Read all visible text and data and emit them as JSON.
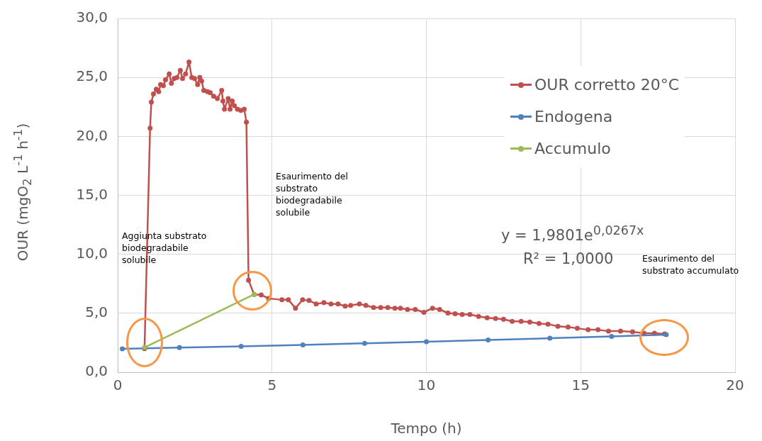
{
  "chart_data": {
    "type": "line",
    "xlabel": "Tempo (h)",
    "ylabel": "OUR (mgO$_{2}$ L$^{-1}$ h$^{-1}$)",
    "xlim": [
      0,
      20
    ],
    "xticks": [
      0,
      5,
      10,
      15,
      20
    ],
    "ylim": [
      0,
      30
    ],
    "yticks": [
      {
        "value": 0,
        "label": "0,0"
      },
      {
        "value": 5,
        "label": "5,0"
      },
      {
        "value": 10,
        "label": "10,0"
      },
      {
        "value": 15,
        "label": "15,0"
      },
      {
        "value": 20,
        "label": "20,0"
      },
      {
        "value": 25,
        "label": "25,0"
      },
      {
        "value": 30,
        "label": "30,0"
      }
    ],
    "grid": true,
    "legend": "top right",
    "marker": "circle",
    "line_style": "solid",
    "series": [
      {
        "name": "OUR corretto 20°C",
        "color": "#c0504d",
        "x": [
          0.87,
          1.05,
          1.09,
          1.16,
          1.25,
          1.33,
          1.39,
          1.48,
          1.55,
          1.67,
          1.74,
          1.83,
          1.92,
          2.03,
          2.1,
          2.2,
          2.31,
          2.4,
          2.49,
          2.59,
          2.66,
          2.72,
          2.79,
          2.91,
          3.0,
          3.11,
          3.23,
          3.37,
          3.41,
          3.46,
          3.58,
          3.64,
          3.71,
          3.78,
          3.88,
          3.99,
          4.1,
          4.17,
          4.24,
          4.42,
          4.65,
          4.89,
          5.32,
          5.53,
          5.76,
          5.99,
          6.2,
          6.43,
          6.68,
          6.91,
          7.14,
          7.37,
          7.55,
          7.83,
          8.04,
          8.29,
          8.52,
          8.75,
          8.98,
          9.16,
          9.39,
          9.64,
          9.92,
          10.2,
          10.43,
          10.7,
          10.93,
          11.16,
          11.41,
          11.69,
          11.97,
          12.24,
          12.5,
          12.78,
          13.07,
          13.35,
          13.65,
          13.94,
          14.26,
          14.59,
          14.89,
          15.24,
          15.56,
          15.9,
          16.29,
          16.68,
          17.05,
          17.39,
          17.72
        ],
        "values": [
          2.0,
          20.7,
          22.9,
          23.6,
          24.0,
          23.8,
          24.4,
          24.3,
          24.8,
          25.3,
          24.5,
          24.9,
          25.0,
          25.6,
          24.9,
          25.3,
          26.3,
          25.0,
          24.9,
          24.4,
          25.0,
          24.7,
          23.9,
          23.8,
          23.7,
          23.4,
          23.2,
          23.9,
          23.0,
          22.3,
          23.2,
          22.3,
          23.0,
          22.6,
          22.3,
          22.2,
          22.3,
          21.2,
          7.8,
          6.6,
          6.56,
          6.26,
          6.14,
          6.14,
          5.43,
          6.14,
          6.08,
          5.79,
          5.9,
          5.79,
          5.79,
          5.61,
          5.67,
          5.79,
          5.67,
          5.49,
          5.49,
          5.49,
          5.43,
          5.43,
          5.32,
          5.32,
          5.08,
          5.43,
          5.32,
          5.02,
          4.96,
          4.9,
          4.9,
          4.73,
          4.61,
          4.55,
          4.49,
          4.31,
          4.31,
          4.25,
          4.13,
          4.08,
          3.9,
          3.84,
          3.72,
          3.6,
          3.6,
          3.48,
          3.48,
          3.43,
          3.31,
          3.31,
          3.25
        ]
      },
      {
        "name": "Endogena",
        "color": "#4f81bd",
        "x": [
          0.15,
          2,
          4,
          6,
          8,
          10,
          12,
          14,
          16,
          17.77
        ],
        "values": [
          1.99,
          2.09,
          2.2,
          2.32,
          2.45,
          2.59,
          2.73,
          2.88,
          3.04,
          3.18
        ]
      },
      {
        "name": "Accumulo",
        "color": "#9bbb59",
        "x": [
          0.87,
          4.42
        ],
        "values": [
          2.1,
          6.6
        ]
      }
    ],
    "annotations": [
      "Aggiunta substrato biodegradabile solubile",
      "Esaurimento del substrato biodegradabile solubile",
      "y = 1,9801e$^{0,0267x}$",
      "R² = 1,0000",
      "Esaurimento del substrato accumulato"
    ]
  }
}
